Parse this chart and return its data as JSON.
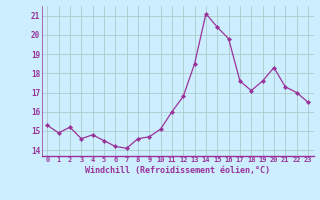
{
  "x": [
    0,
    1,
    2,
    3,
    4,
    5,
    6,
    7,
    8,
    9,
    10,
    11,
    12,
    13,
    14,
    15,
    16,
    17,
    18,
    19,
    20,
    21,
    22,
    23
  ],
  "y": [
    15.3,
    14.9,
    15.2,
    14.6,
    14.8,
    14.5,
    14.2,
    14.1,
    14.6,
    14.7,
    15.1,
    16.0,
    16.8,
    18.5,
    21.1,
    20.4,
    19.8,
    17.6,
    17.1,
    17.6,
    18.3,
    17.3,
    17.0,
    16.5
  ],
  "line_color": "#993399",
  "marker": "D",
  "marker_size": 2,
  "bg_color": "#cceeff",
  "grid_color": "#aacccc",
  "xlabel": "Windchill (Refroidissement éolien,°C)",
  "xlabel_color": "#993399",
  "tick_color": "#993399",
  "ylim": [
    13.7,
    21.5
  ],
  "xlim": [
    -0.5,
    23.5
  ],
  "yticks": [
    14,
    15,
    16,
    17,
    18,
    19,
    20,
    21
  ],
  "xtick_labels": [
    "0",
    "1",
    "2",
    "3",
    "4",
    "5",
    "6",
    "7",
    "8",
    "9",
    "10",
    "11",
    "12",
    "13",
    "14",
    "15",
    "16",
    "17",
    "18",
    "19",
    "20",
    "21",
    "22",
    "23"
  ]
}
